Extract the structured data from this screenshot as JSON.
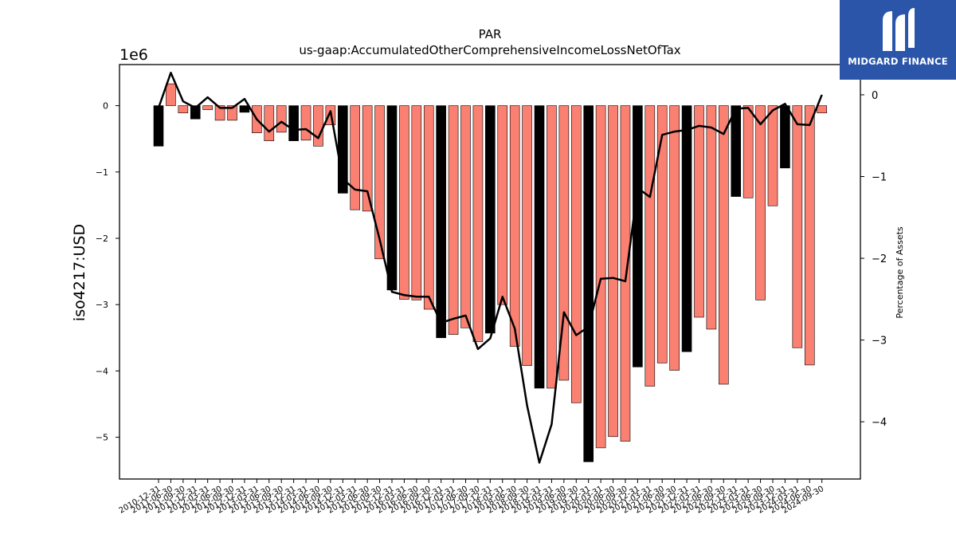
{
  "logo": {
    "name": "MIDGARD FINANCE",
    "bg_color": "#2a55a8"
  },
  "chart_data": {
    "type": "bar",
    "title": "PAR",
    "subtitle": "us-gaap:AccumulatedOtherComprehensiveIncomeLossNetOfTax",
    "ylabel": "iso4217:USD",
    "y_scale_label": "1e6",
    "y2label": "Percentage of Assets",
    "ylim": [
      -5.63,
      0.62
    ],
    "y2lim": [
      -4.7,
      0.37
    ],
    "yticks": [
      0,
      -1,
      -2,
      -3,
      -4,
      -5
    ],
    "y2ticks": [
      0,
      -1,
      -2,
      -3,
      -4
    ],
    "categories": [
      "2010-12-31",
      "2011-06-30",
      "2011-09-30",
      "2011-12-31",
      "2012-03-31",
      "2012-06-30",
      "2012-09-30",
      "2012-12-31",
      "2013-03-31",
      "2013-06-30",
      "2013-09-30",
      "2013-12-31",
      "2014-03-31",
      "2014-06-30",
      "2014-09-30",
      "2014-12-31",
      "2015-03-31",
      "2015-06-30",
      "2015-09-30",
      "2015-12-31",
      "2016-03-31",
      "2016-06-30",
      "2016-09-30",
      "2016-12-31",
      "2017-03-31",
      "2017-06-30",
      "2017-09-30",
      "2017-12-31",
      "2018-03-31",
      "2018-06-30",
      "2018-09-30",
      "2018-12-31",
      "2019-03-31",
      "2019-06-30",
      "2019-09-30",
      "2019-12-31",
      "2020-03-31",
      "2020-06-30",
      "2020-09-30",
      "2020-12-31",
      "2021-03-31",
      "2021-06-30",
      "2021-09-30",
      "2021-12-31",
      "2022-03-31",
      "2022-06-30",
      "2022-09-30",
      "2022-12-31",
      "2023-03-31",
      "2023-06-30",
      "2023-09-30",
      "2023-12-31",
      "2024-03-31",
      "2024-06-30",
      "2024-09-30"
    ],
    "series": [
      {
        "values": [
          -0.61,
          0.33,
          -0.11,
          -0.2,
          -0.06,
          -0.22,
          -0.22,
          -0.1,
          -0.41,
          -0.53,
          -0.4,
          -0.53,
          -0.52,
          -0.61,
          -0.29,
          -1.32,
          -1.57,
          -1.59,
          -2.31,
          -2.78,
          -2.92,
          -2.93,
          -3.07,
          -3.5,
          -3.45,
          -3.35,
          -3.56,
          -3.43,
          -3.0,
          -3.63,
          -3.92,
          -4.26,
          -4.26,
          -4.14,
          -4.48,
          -5.37,
          -5.16,
          -4.99,
          -5.06,
          -3.94,
          -4.23,
          -3.88,
          -3.99,
          -3.71,
          -3.19,
          -3.37,
          -4.2,
          -1.37,
          -1.39,
          -2.93,
          -1.51,
          -0.94,
          -3.65,
          -3.91,
          -0.11
        ],
        "highlight": [
          true,
          false,
          false,
          true,
          false,
          false,
          false,
          true,
          false,
          false,
          false,
          true,
          false,
          false,
          false,
          true,
          false,
          false,
          false,
          true,
          false,
          false,
          false,
          true,
          false,
          false,
          false,
          true,
          false,
          false,
          false,
          true,
          false,
          false,
          false,
          true,
          false,
          false,
          false,
          true,
          false,
          false,
          false,
          true,
          false,
          false,
          false,
          true,
          false,
          false,
          false,
          true,
          false,
          false,
          false
        ]
      },
      {
        "axis": "secondary",
        "values": [
          -0.16,
          0.27,
          -0.08,
          -0.16,
          -0.03,
          -0.16,
          -0.16,
          -0.05,
          -0.3,
          -0.45,
          -0.33,
          -0.43,
          -0.42,
          -0.53,
          -0.2,
          -1.03,
          -1.16,
          -1.18,
          -1.77,
          -2.41,
          -2.45,
          -2.47,
          -2.47,
          -2.79,
          -2.74,
          -2.7,
          -3.11,
          -2.98,
          -2.47,
          -2.86,
          -3.8,
          -4.5,
          -4.03,
          -2.66,
          -2.94,
          -2.84,
          -2.25,
          -2.24,
          -2.28,
          -1.14,
          -1.25,
          -0.49,
          -0.45,
          -0.43,
          -0.38,
          -0.4,
          -0.48,
          -0.17,
          -0.16,
          -0.36,
          -0.19,
          -0.11,
          -0.36,
          -0.37,
          0.0
        ]
      }
    ],
    "colors": {
      "bar": "#fa8072",
      "bar_highlight": "#000000",
      "line": "#000000"
    },
    "grid": false,
    "legend": "none"
  }
}
